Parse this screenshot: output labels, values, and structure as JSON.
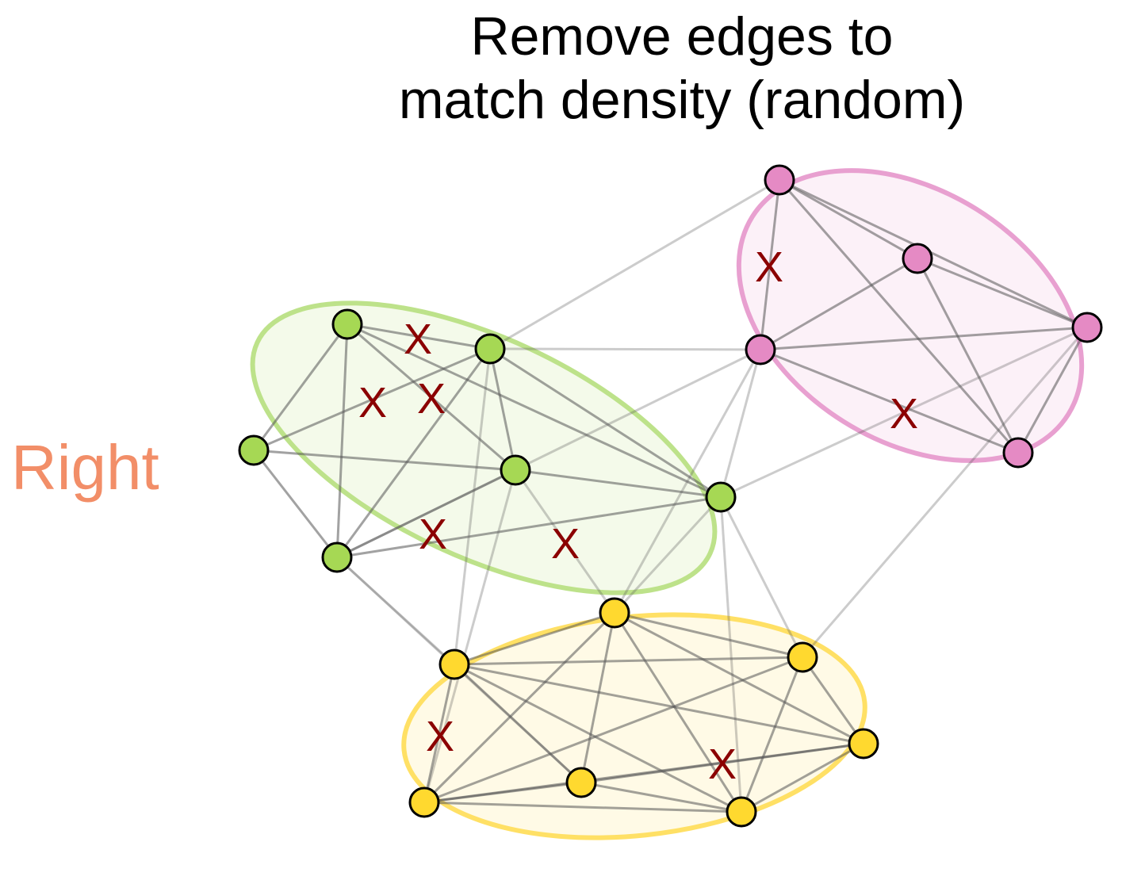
{
  "title_lines": [
    "Remove edges to",
    "match density (random)"
  ],
  "side_label": "Right",
  "colors": {
    "label": "#f28e68",
    "remove_mark": "#8b0000",
    "edge": "#555555",
    "node_stroke": "#000000"
  },
  "clusters": [
    {
      "name": "pink",
      "fill": "#e58ac4",
      "stroke": "#e8a0d0"
    },
    {
      "name": "green",
      "fill": "#a6d854",
      "stroke": "#bde28a"
    },
    {
      "name": "yellow",
      "fill": "#ffd92f",
      "stroke": "#ffe065"
    }
  ],
  "nodes": [
    {
      "id": "p1",
      "cluster": "pink"
    },
    {
      "id": "p2",
      "cluster": "pink"
    },
    {
      "id": "p3",
      "cluster": "pink"
    },
    {
      "id": "p4",
      "cluster": "pink"
    },
    {
      "id": "p5",
      "cluster": "pink"
    },
    {
      "id": "g1",
      "cluster": "green"
    },
    {
      "id": "g2",
      "cluster": "green"
    },
    {
      "id": "g3",
      "cluster": "green"
    },
    {
      "id": "g4",
      "cluster": "green"
    },
    {
      "id": "g5",
      "cluster": "green"
    },
    {
      "id": "g6",
      "cluster": "green"
    },
    {
      "id": "y1",
      "cluster": "yellow"
    },
    {
      "id": "y2",
      "cluster": "yellow"
    },
    {
      "id": "y3",
      "cluster": "yellow"
    },
    {
      "id": "y4",
      "cluster": "yellow"
    },
    {
      "id": "y5",
      "cluster": "yellow"
    },
    {
      "id": "y6",
      "cluster": "yellow"
    },
    {
      "id": "y7",
      "cluster": "yellow"
    }
  ],
  "edges": [
    [
      "p1",
      "p2"
    ],
    [
      "p1",
      "p3"
    ],
    [
      "p1",
      "p4"
    ],
    [
      "p1",
      "p5"
    ],
    [
      "p2",
      "p3"
    ],
    [
      "p2",
      "p4"
    ],
    [
      "p2",
      "p5"
    ],
    [
      "p4",
      "p3"
    ],
    [
      "p4",
      "p5"
    ],
    [
      "p3",
      "p5"
    ],
    [
      "g1",
      "g2"
    ],
    [
      "g1",
      "g3"
    ],
    [
      "g1",
      "g4"
    ],
    [
      "g1",
      "g5"
    ],
    [
      "g1",
      "g6"
    ],
    [
      "g2",
      "g3"
    ],
    [
      "g2",
      "g4"
    ],
    [
      "g2",
      "g5"
    ],
    [
      "g2",
      "g6"
    ],
    [
      "g3",
      "g4"
    ],
    [
      "g3",
      "g5"
    ],
    [
      "g4",
      "g5"
    ],
    [
      "g4",
      "g6"
    ],
    [
      "g5",
      "g6"
    ],
    [
      "y1",
      "y2"
    ],
    [
      "y1",
      "y3"
    ],
    [
      "y1",
      "y4"
    ],
    [
      "y1",
      "y5"
    ],
    [
      "y1",
      "y6"
    ],
    [
      "y1",
      "y7"
    ],
    [
      "y2",
      "y3"
    ],
    [
      "y2",
      "y4"
    ],
    [
      "y2",
      "y6"
    ],
    [
      "y2",
      "y7"
    ],
    [
      "y3",
      "y4"
    ],
    [
      "y3",
      "y5"
    ],
    [
      "y3",
      "y6"
    ],
    [
      "y3",
      "y7"
    ],
    [
      "y4",
      "y5"
    ],
    [
      "y4",
      "y6"
    ],
    [
      "y4",
      "y7"
    ],
    [
      "y5",
      "y6"
    ],
    [
      "y5",
      "y7"
    ],
    [
      "y6",
      "y7"
    ],
    [
      "g2",
      "p1"
    ],
    [
      "g2",
      "p3"
    ],
    [
      "g5",
      "p3"
    ],
    [
      "g6",
      "p3"
    ],
    [
      "g6",
      "p4"
    ],
    [
      "y1",
      "p3"
    ],
    [
      "y2",
      "p4"
    ],
    [
      "g6",
      "y1"
    ],
    [
      "g6",
      "y2"
    ],
    [
      "g6",
      "y7"
    ],
    [
      "g4",
      "y1"
    ],
    [
      "g4",
      "y6"
    ],
    [
      "g2",
      "y3"
    ],
    [
      "g5",
      "y3"
    ],
    [
      "g5",
      "y5"
    ]
  ],
  "removed_edge_marks": [
    {
      "label": "X"
    },
    {
      "label": "X"
    },
    {
      "label": "X"
    },
    {
      "label": "X"
    },
    {
      "label": "X"
    },
    {
      "label": "X"
    },
    {
      "label": "X"
    },
    {
      "label": "X"
    },
    {
      "label": "X"
    }
  ]
}
